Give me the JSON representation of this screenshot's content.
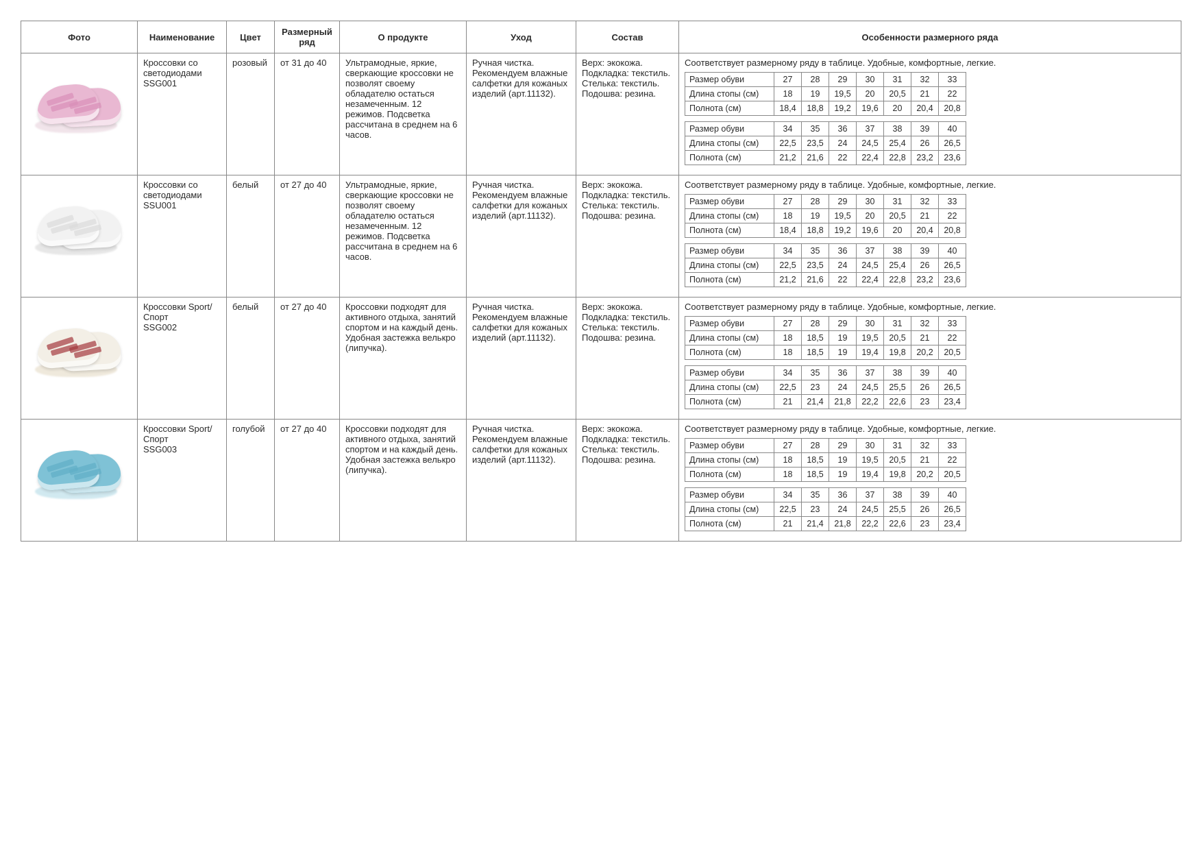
{
  "headers": {
    "photo": "Фото",
    "name": "Наименование",
    "color": "Цвет",
    "sizeRange": "Размерный ряд",
    "about": "О продукте",
    "care": "Уход",
    "composition": "Состав",
    "features": "Особенности размерного ряда"
  },
  "sizeRowLabels": {
    "size": "Размер обуви",
    "foot": "Длина стопы (см)",
    "full": "Полнота (см)"
  },
  "shoePalettes": {
    "pink": {
      "body": "#e9b8d2",
      "strap": "#d98fb8",
      "sole": "#f1e4ea"
    },
    "white": {
      "body": "#f2f2f2",
      "strap": "#dcdcdc",
      "sole": "#e7e7e7"
    },
    "cream": {
      "body": "#f3efe6",
      "strap": "#a43a3f",
      "sole": "#efe9dc"
    },
    "blue": {
      "body": "#7fc2d6",
      "strap": "#5faec6",
      "sole": "#d1e9f0"
    }
  },
  "sizeTablesA": [
    {
      "sizes": [
        "27",
        "28",
        "29",
        "30",
        "31",
        "32",
        "33"
      ],
      "foot": [
        "18",
        "19",
        "19,5",
        "20",
        "20,5",
        "21",
        "22"
      ],
      "full": [
        "18,4",
        "18,8",
        "19,2",
        "19,6",
        "20",
        "20,4",
        "20,8"
      ]
    },
    {
      "sizes": [
        "34",
        "35",
        "36",
        "37",
        "38",
        "39",
        "40"
      ],
      "foot": [
        "22,5",
        "23,5",
        "24",
        "24,5",
        "25,4",
        "26",
        "26,5"
      ],
      "full": [
        "21,2",
        "21,6",
        "22",
        "22,4",
        "22,8",
        "23,2",
        "23,6"
      ]
    }
  ],
  "sizeTablesB": [
    {
      "sizes": [
        "27",
        "28",
        "29",
        "30",
        "31",
        "32",
        "33"
      ],
      "foot": [
        "18",
        "18,5",
        "19",
        "19,5",
        "20,5",
        "21",
        "22"
      ],
      "full": [
        "18",
        "18,5",
        "19",
        "19,4",
        "19,8",
        "20,2",
        "20,5"
      ]
    },
    {
      "sizes": [
        "34",
        "35",
        "36",
        "37",
        "38",
        "39",
        "40"
      ],
      "foot": [
        "22,5",
        "23",
        "24",
        "24,5",
        "25,5",
        "26",
        "26,5"
      ],
      "full": [
        "21",
        "21,4",
        "21,8",
        "22,2",
        "22,6",
        "23",
        "23,4"
      ]
    }
  ],
  "texts": {
    "aboutLED": "Ультрамодные, яркие, сверкающие кроссовки не позволят своему обладателю остаться незамеченным. 12 режимов. Подсветка рассчитана в среднем на 6 часов.",
    "aboutSport": "Кроссовки подходят для активного отдыха, занятий спортом и на каждый день. Удобная застежка велькро (липучка).",
    "care": "Ручная чистка. Рекомендуем влажные салфетки для кожаных изделий (арт.11132).",
    "composition": "Верх: экокожа.\nПодкладка: текстиль.\nСтелька: текстиль.\nПодошва: резина.",
    "featNote": "Соответствует размерному ряду в таблице. Удобные, комфортные, легкие."
  },
  "rows": [
    {
      "name": "Кроссовки со светодиодами\nSSG001",
      "color": "розовый",
      "range": "от 31 до 40",
      "aboutKey": "aboutLED",
      "palette": "pink",
      "sizeSet": "A"
    },
    {
      "name": "Кроссовки со светодиодами\nSSU001",
      "color": "белый",
      "range": "от 27 до 40",
      "aboutKey": "aboutLED",
      "palette": "white",
      "sizeSet": "A"
    },
    {
      "name": "Кроссовки Sport/Спорт\nSSG002",
      "color": "белый",
      "range": "от 27 до 40",
      "aboutKey": "aboutSport",
      "palette": "cream",
      "sizeSet": "B"
    },
    {
      "name": "Кроссовки Sport/Спорт\nSSG003",
      "color": "голубой",
      "range": "от 27 до 40",
      "aboutKey": "aboutSport",
      "palette": "blue",
      "sizeSet": "B"
    }
  ]
}
